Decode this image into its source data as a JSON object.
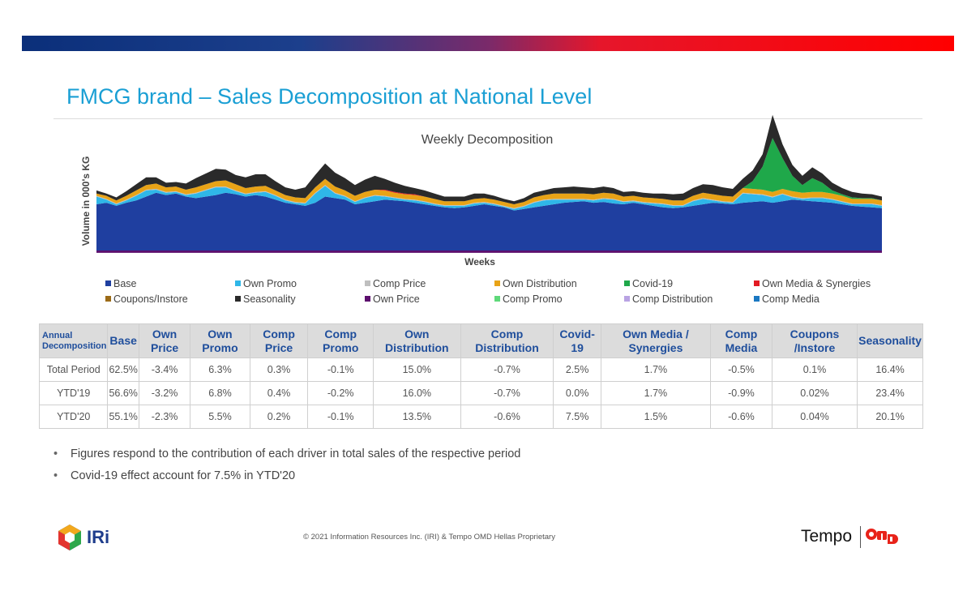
{
  "slide": {
    "title": "FMCG brand – Sales Decomposition at National Level",
    "colors": {
      "title": "#1a9fd4",
      "bar_left": "#0b2f7a",
      "bar_right": "#ff0000",
      "header_text": "#1f4e9c"
    }
  },
  "chart_data": {
    "type": "area",
    "stacked": true,
    "title": "Weekly Decomposition",
    "xlabel": "Weeks",
    "ylabel": "Volume in 000's KG",
    "grid": false,
    "legend_position": "bottom",
    "series": [
      {
        "name": "Base",
        "color": "#1f3fa0",
        "values": [
          60,
          62,
          58,
          62,
          65,
          70,
          75,
          72,
          74,
          70,
          68,
          70,
          72,
          75,
          73,
          70,
          72,
          70,
          66,
          62,
          60,
          58,
          62,
          70,
          68,
          66,
          60,
          62,
          64,
          66,
          65,
          64,
          62,
          60,
          58,
          56,
          55,
          56,
          58,
          60,
          58,
          56,
          52,
          54,
          56,
          58,
          60,
          62,
          63,
          64,
          62,
          63,
          61,
          60,
          62,
          60,
          58,
          56,
          55,
          56,
          58,
          60,
          62,
          61,
          60,
          62,
          63,
          64,
          62,
          64,
          66,
          65,
          64,
          63,
          62,
          60,
          58,
          57,
          56,
          55
        ]
      },
      {
        "name": "Own Promo",
        "color": "#2fb7e8",
        "values": [
          10,
          4,
          2,
          3,
          6,
          8,
          4,
          3,
          2,
          2,
          6,
          8,
          10,
          7,
          4,
          3,
          3,
          6,
          5,
          3,
          2,
          3,
          12,
          14,
          6,
          4,
          3,
          6,
          7,
          4,
          3,
          2,
          3,
          3,
          2,
          2,
          3,
          2,
          3,
          2,
          2,
          1,
          2,
          3,
          6,
          7,
          6,
          4,
          3,
          2,
          3,
          4,
          5,
          3,
          2,
          2,
          3,
          4,
          3,
          2,
          6,
          7,
          3,
          2,
          2,
          12,
          10,
          8,
          7,
          9,
          3,
          2,
          4,
          5,
          4,
          3,
          2,
          3,
          4,
          3
        ]
      },
      {
        "name": "Comp Price",
        "color": "#bfbfbf",
        "values": [
          1,
          1,
          1,
          1,
          1,
          1,
          1,
          1,
          1,
          1,
          1,
          1,
          1,
          1,
          1,
          1,
          1,
          1,
          1,
          1,
          1,
          1,
          1,
          1,
          1,
          1,
          1,
          1,
          1,
          1,
          1,
          1,
          1,
          1,
          1,
          1,
          1,
          1,
          1,
          1,
          1,
          1,
          1,
          1,
          1,
          1,
          1,
          1,
          1,
          1,
          1,
          1,
          1,
          1,
          1,
          1,
          1,
          1,
          1,
          1,
          1,
          1,
          1,
          1,
          1,
          1,
          1,
          1,
          1,
          1,
          1,
          1,
          1,
          1,
          1,
          1,
          1,
          1,
          1,
          1
        ]
      },
      {
        "name": "Own Distribution",
        "color": "#e8a317",
        "values": [
          3,
          4,
          4,
          5,
          6,
          6,
          7,
          6,
          6,
          6,
          7,
          7,
          7,
          8,
          8,
          7,
          7,
          7,
          6,
          6,
          6,
          6,
          7,
          8,
          8,
          7,
          7,
          7,
          7,
          7,
          6,
          6,
          6,
          6,
          6,
          5,
          5,
          5,
          5,
          5,
          5,
          5,
          5,
          5,
          6,
          6,
          7,
          7,
          7,
          7,
          7,
          7,
          7,
          6,
          6,
          6,
          6,
          6,
          6,
          6,
          6,
          7,
          7,
          7,
          7,
          6,
          6,
          6,
          6,
          6,
          7,
          7,
          7,
          7,
          7,
          7,
          6,
          6,
          6,
          6
        ]
      },
      {
        "name": "Covid-19",
        "color": "#1fa84a",
        "values": [
          0,
          0,
          0,
          0,
          0,
          0,
          0,
          0,
          0,
          0,
          0,
          0,
          0,
          0,
          0,
          0,
          0,
          0,
          0,
          0,
          0,
          0,
          0,
          0,
          0,
          0,
          0,
          0,
          0,
          0,
          0,
          0,
          0,
          0,
          0,
          0,
          0,
          0,
          0,
          0,
          0,
          0,
          0,
          0,
          0,
          0,
          0,
          0,
          0,
          0,
          0,
          0,
          0,
          0,
          0,
          0,
          0,
          0,
          0,
          0,
          0,
          0,
          0,
          0,
          0,
          0,
          10,
          30,
          70,
          40,
          20,
          10,
          18,
          12,
          4,
          2,
          2,
          1,
          1,
          0
        ]
      },
      {
        "name": "Own Media & Synergies",
        "color": "#e31b23",
        "values": [
          0,
          0,
          0,
          0,
          0,
          0,
          0,
          0,
          0,
          0,
          0,
          0,
          0,
          0,
          0,
          0,
          0,
          0,
          0,
          0,
          0,
          0,
          0,
          0,
          0,
          0,
          0,
          0,
          0,
          1,
          1,
          1,
          1,
          0,
          0,
          0,
          0,
          0,
          0,
          0,
          0,
          0,
          0,
          0,
          0,
          0,
          0,
          0,
          0,
          0,
          0,
          0,
          0,
          0,
          0,
          0,
          0,
          0,
          0,
          0,
          0,
          0,
          0,
          0,
          0,
          0,
          0,
          0,
          0,
          0,
          0,
          0,
          0,
          0,
          0,
          0,
          0,
          0,
          0,
          0
        ]
      },
      {
        "name": "Coupons/Instore",
        "color": "#9c6b17",
        "values": [
          0,
          0,
          0,
          0,
          0,
          0,
          0,
          0,
          0,
          0,
          0,
          0,
          0,
          0,
          0,
          0,
          0,
          0,
          0,
          0,
          0,
          0,
          0,
          0,
          0,
          0,
          0,
          0,
          0,
          0,
          0,
          0,
          0,
          0,
          0,
          0,
          0,
          0,
          0,
          0,
          0,
          0,
          0,
          0,
          0,
          0,
          0,
          0,
          0,
          0,
          0,
          0,
          0,
          0,
          0,
          0,
          0,
          0,
          0,
          0,
          0,
          0,
          0,
          0,
          0,
          0,
          0,
          0,
          0,
          0,
          0,
          0,
          0,
          0,
          0,
          0,
          0,
          0,
          0,
          0
        ]
      },
      {
        "name": "Seasonality",
        "color": "#2a2a2a",
        "values": [
          4,
          3,
          4,
          6,
          8,
          10,
          8,
          6,
          6,
          8,
          12,
          14,
          16,
          14,
          12,
          14,
          16,
          15,
          12,
          10,
          10,
          14,
          16,
          20,
          18,
          16,
          14,
          16,
          18,
          14,
          12,
          10,
          8,
          8,
          7,
          6,
          6,
          6,
          7,
          6,
          5,
          4,
          4,
          5,
          6,
          6,
          7,
          8,
          9,
          8,
          8,
          8,
          7,
          6,
          6,
          6,
          6,
          7,
          8,
          9,
          10,
          11,
          12,
          11,
          10,
          12,
          14,
          16,
          30,
          18,
          14,
          12,
          14,
          12,
          10,
          8,
          7,
          6,
          5,
          5
        ]
      },
      {
        "name": "Own Price",
        "color": "#5c0f6e",
        "values": [
          -3,
          -3,
          -3,
          -3,
          -3,
          -3,
          -3,
          -3,
          -3,
          -3,
          -3,
          -3,
          -3,
          -3,
          -3,
          -3,
          -3,
          -3,
          -3,
          -3,
          -3,
          -3,
          -3,
          -3,
          -3,
          -3,
          -3,
          -3,
          -3,
          -3,
          -3,
          -3,
          -3,
          -3,
          -3,
          -3,
          -3,
          -3,
          -3,
          -3,
          -3,
          -3,
          -3,
          -3,
          -3,
          -3,
          -3,
          -3,
          -3,
          -3,
          -3,
          -3,
          -3,
          -3,
          -3,
          -3,
          -3,
          -3,
          -3,
          -3,
          -3,
          -3,
          -3,
          -3,
          -3,
          -3,
          -3,
          -3,
          -3,
          -3,
          -3,
          -3,
          -3,
          -3,
          -3,
          -3,
          -3,
          -3,
          -3,
          -3
        ]
      },
      {
        "name": "Comp Promo",
        "color": "#5fd97a",
        "values": []
      },
      {
        "name": "Comp Distribution",
        "color": "#b9a3e3",
        "values": []
      },
      {
        "name": "Comp Media",
        "color": "#1a78c2",
        "values": []
      }
    ]
  },
  "table": {
    "headers": [
      "Annual Decomposition",
      "Base",
      "Own Price",
      "Own Promo",
      "Comp Price",
      "Comp Promo",
      "Own Distribution",
      "Comp Distribution",
      "Covid-19",
      "Own Media / Synergies",
      "Comp Media",
      "Coupons /Instore",
      "Seasonality"
    ],
    "rows": [
      [
        "Total Period",
        "62.5%",
        "-3.4%",
        "6.3%",
        "0.3%",
        "-0.1%",
        "15.0%",
        "-0.7%",
        "2.5%",
        "1.7%",
        "-0.5%",
        "0.1%",
        "16.4%"
      ],
      [
        "YTD'19",
        "56.6%",
        "-3.2%",
        "6.8%",
        "0.4%",
        "-0.2%",
        "16.0%",
        "-0.7%",
        "0.0%",
        "1.7%",
        "-0.9%",
        "0.02%",
        "23.4%"
      ],
      [
        "YTD'20",
        "55.1%",
        "-2.3%",
        "5.5%",
        "0.2%",
        "-0.1%",
        "13.5%",
        "-0.6%",
        "7.5%",
        "1.5%",
        "-0.6%",
        "0.04%",
        "20.1%"
      ]
    ]
  },
  "notes": {
    "bullets": [
      "Figures respond to the contribution of each driver in total sales of the respective period",
      "Covid-19 effect account for 7.5% in YTD'20"
    ]
  },
  "footer": {
    "iri_label": "IRi",
    "copyright": "© 2021 Information Resources Inc. (IRI) & Tempo OMD Hellas Proprietary",
    "tempo_label": "Tempo"
  }
}
